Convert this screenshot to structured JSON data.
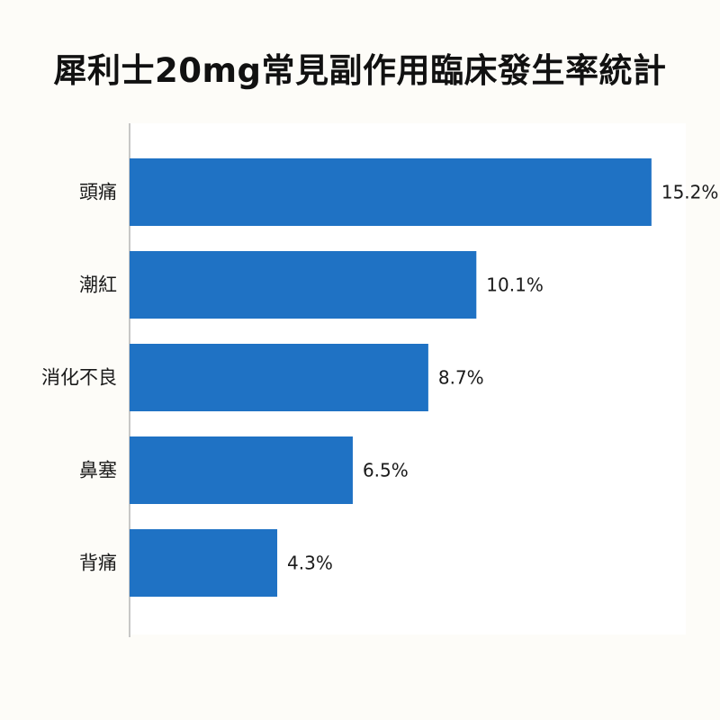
{
  "chart_data": {
    "type": "bar",
    "orientation": "horizontal",
    "title": "犀利士20mg常見副作用臨床發生率統計",
    "categories": [
      "頭痛",
      "潮紅",
      "消化不良",
      "鼻塞",
      "背痛"
    ],
    "values": [
      15.2,
      10.1,
      8.7,
      6.5,
      4.3
    ],
    "value_labels": [
      "15.2%",
      "10.1%",
      "8.7%",
      "6.5%",
      "4.3%"
    ],
    "xlim": [
      0,
      16.2
    ],
    "grid": false,
    "legend": "none",
    "bar_color": "#1f72c4"
  }
}
